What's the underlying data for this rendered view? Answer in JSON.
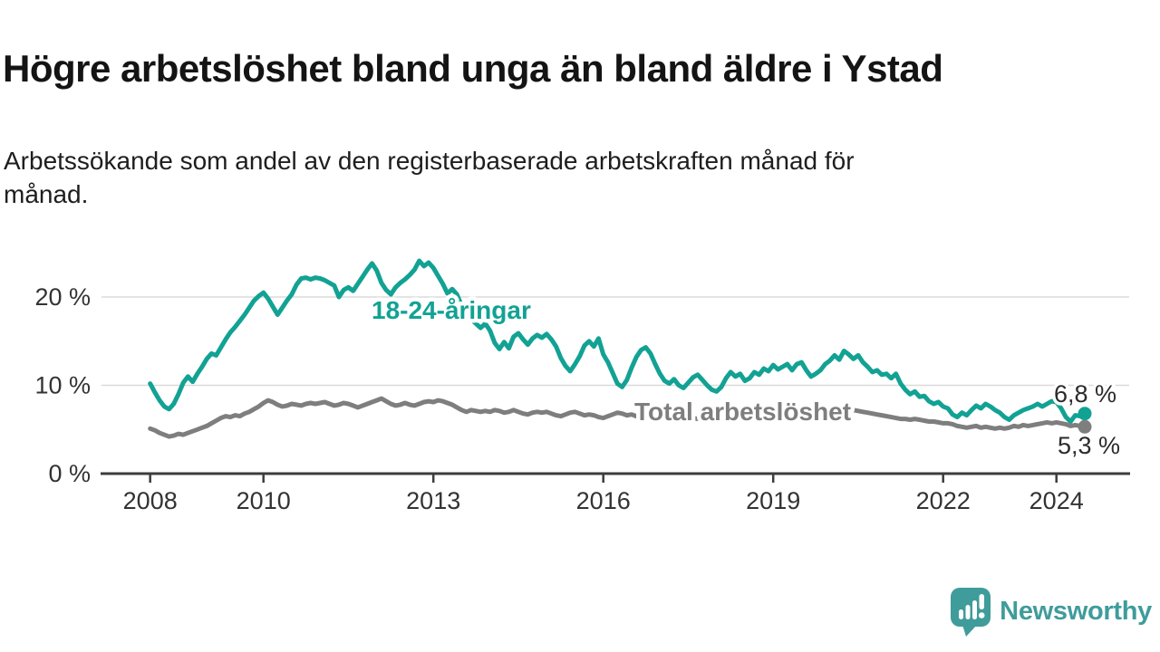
{
  "header": {
    "title": "Högre arbetslöshet bland unga än bland äldre i Ystad",
    "subtitle_line1": "Arbetssökande som andel av den registerbaserade arbetskraften månad för",
    "subtitle_line2": "månad."
  },
  "chart_data": {
    "type": "line",
    "title": "Högre arbetslöshet bland unga än bland äldre i Ystad",
    "subtitle": "Arbetssökande som andel av den registerbaserade arbetskraften månad för månad.",
    "x_unit": "month",
    "x_start": "2008-01",
    "x_end": "2024-07",
    "x_ticks": [
      2008,
      2010,
      2013,
      2016,
      2019,
      2022,
      2024
    ],
    "y_ticks": [
      {
        "value": 0,
        "label": "0 %"
      },
      {
        "value": 10,
        "label": "10 %"
      },
      {
        "value": 20,
        "label": "20 %"
      }
    ],
    "ylim": [
      0,
      26
    ],
    "grid": true,
    "legend_position": "inline-labels",
    "series": [
      {
        "name": "18-24-åringar",
        "color": "#12A294",
        "end_label": "6,8 %",
        "end_value": 6.8,
        "values": [
          10.2,
          9.2,
          8.3,
          7.6,
          7.3,
          7.9,
          9.0,
          10.3,
          11.0,
          10.4,
          11.3,
          12.1,
          13.0,
          13.6,
          13.4,
          14.3,
          15.2,
          16.0,
          16.6,
          17.3,
          18.0,
          18.8,
          19.6,
          20.1,
          20.5,
          19.8,
          18.9,
          18.0,
          18.8,
          19.6,
          20.3,
          21.4,
          22.1,
          22.2,
          22.0,
          22.2,
          22.1,
          21.9,
          21.6,
          21.3,
          20.0,
          20.8,
          21.1,
          20.7,
          21.5,
          22.3,
          23.1,
          23.8,
          23.0,
          21.6,
          20.8,
          20.3,
          21.1,
          21.6,
          22.0,
          22.5,
          23.1,
          24.1,
          23.5,
          23.9,
          23.3,
          22.4,
          21.5,
          20.4,
          20.9,
          20.3,
          19.0,
          18.2,
          17.5,
          17.0,
          16.5,
          17.0,
          16.2,
          14.8,
          14.1,
          14.9,
          14.2,
          15.5,
          15.9,
          15.2,
          14.6,
          15.3,
          15.7,
          15.4,
          15.8,
          15.2,
          14.4,
          13.1,
          12.2,
          11.6,
          12.4,
          13.3,
          14.5,
          15.0,
          14.4,
          15.3,
          13.5,
          12.6,
          11.4,
          10.2,
          9.8,
          10.6,
          12.0,
          13.2,
          14.0,
          14.3,
          13.6,
          12.4,
          11.3,
          10.5,
          10.2,
          10.7,
          10.0,
          9.7,
          10.3,
          10.9,
          11.2,
          10.6,
          10.0,
          9.5,
          9.3,
          9.8,
          10.8,
          11.5,
          11.0,
          11.3,
          10.5,
          10.8,
          11.5,
          11.2,
          11.9,
          11.6,
          12.3,
          11.8,
          12.1,
          12.4,
          11.7,
          12.4,
          12.6,
          11.7,
          11.0,
          11.3,
          11.7,
          12.4,
          12.8,
          13.4,
          12.9,
          13.9,
          13.5,
          13.0,
          13.4,
          12.6,
          12.1,
          11.5,
          11.7,
          11.2,
          11.3,
          10.8,
          11.3,
          10.2,
          9.5,
          9.0,
          9.3,
          8.7,
          8.8,
          8.2,
          7.9,
          8.1,
          7.6,
          7.4,
          6.7,
          6.4,
          6.9,
          6.6,
          7.2,
          7.7,
          7.4,
          7.9,
          7.6,
          7.2,
          6.9,
          6.4,
          6.1,
          6.6,
          6.9,
          7.2,
          7.4,
          7.6,
          7.9,
          7.6,
          7.9,
          8.2,
          8.1,
          7.4,
          6.4,
          5.9,
          6.6,
          6.5,
          6.8
        ]
      },
      {
        "name": "Total arbetslöshet",
        "color": "#7E7E7E",
        "end_label": "5,3 %",
        "end_value": 5.3,
        "values": [
          5.1,
          4.9,
          4.6,
          4.4,
          4.2,
          4.3,
          4.5,
          4.4,
          4.6,
          4.8,
          5.0,
          5.2,
          5.4,
          5.7,
          6.0,
          6.3,
          6.5,
          6.4,
          6.6,
          6.5,
          6.8,
          7.0,
          7.3,
          7.6,
          8.0,
          8.3,
          8.1,
          7.8,
          7.6,
          7.7,
          7.9,
          7.8,
          7.7,
          7.9,
          8.0,
          7.9,
          8.0,
          8.1,
          7.9,
          7.7,
          7.8,
          8.0,
          7.9,
          7.7,
          7.5,
          7.7,
          7.9,
          8.1,
          8.3,
          8.5,
          8.2,
          7.9,
          7.7,
          7.8,
          8.0,
          7.8,
          7.7,
          7.9,
          8.1,
          8.2,
          8.1,
          8.3,
          8.2,
          8.0,
          7.8,
          7.5,
          7.2,
          7.0,
          7.2,
          7.1,
          7.0,
          7.1,
          7.0,
          7.2,
          7.1,
          6.9,
          7.0,
          7.2,
          7.0,
          6.8,
          6.7,
          6.9,
          7.0,
          6.9,
          7.0,
          6.8,
          6.6,
          6.5,
          6.7,
          6.9,
          7.0,
          6.8,
          6.6,
          6.7,
          6.6,
          6.4,
          6.3,
          6.5,
          6.7,
          6.9,
          6.8,
          6.6,
          6.7,
          6.5,
          6.3,
          6.4,
          6.6,
          6.5,
          6.4,
          6.3,
          6.4,
          6.5,
          6.4,
          6.3,
          6.4,
          6.3,
          6.2,
          6.3,
          6.4,
          6.3,
          6.2,
          6.1,
          6.2,
          6.3,
          6.2,
          6.1,
          6.0,
          6.1,
          6.2,
          6.1,
          6.0,
          6.1,
          6.0,
          6.1,
          6.2,
          6.1,
          6.2,
          6.3,
          6.2,
          6.3,
          6.4,
          6.3,
          6.4,
          6.5,
          6.6,
          6.8,
          7.0,
          7.2,
          7.3,
          7.2,
          7.1,
          7.0,
          6.9,
          6.8,
          6.7,
          6.6,
          6.5,
          6.4,
          6.3,
          6.2,
          6.2,
          6.1,
          6.2,
          6.1,
          6.0,
          5.9,
          5.9,
          5.8,
          5.7,
          5.7,
          5.6,
          5.4,
          5.3,
          5.2,
          5.3,
          5.4,
          5.2,
          5.3,
          5.2,
          5.1,
          5.2,
          5.1,
          5.2,
          5.4,
          5.3,
          5.5,
          5.4,
          5.5,
          5.6,
          5.7,
          5.8,
          5.7,
          5.8,
          5.7,
          5.6,
          5.4,
          5.5,
          5.4,
          5.3
        ]
      }
    ]
  },
  "footer": {
    "brand": "Newsworthy",
    "brand_color": "#3F9C9B"
  }
}
